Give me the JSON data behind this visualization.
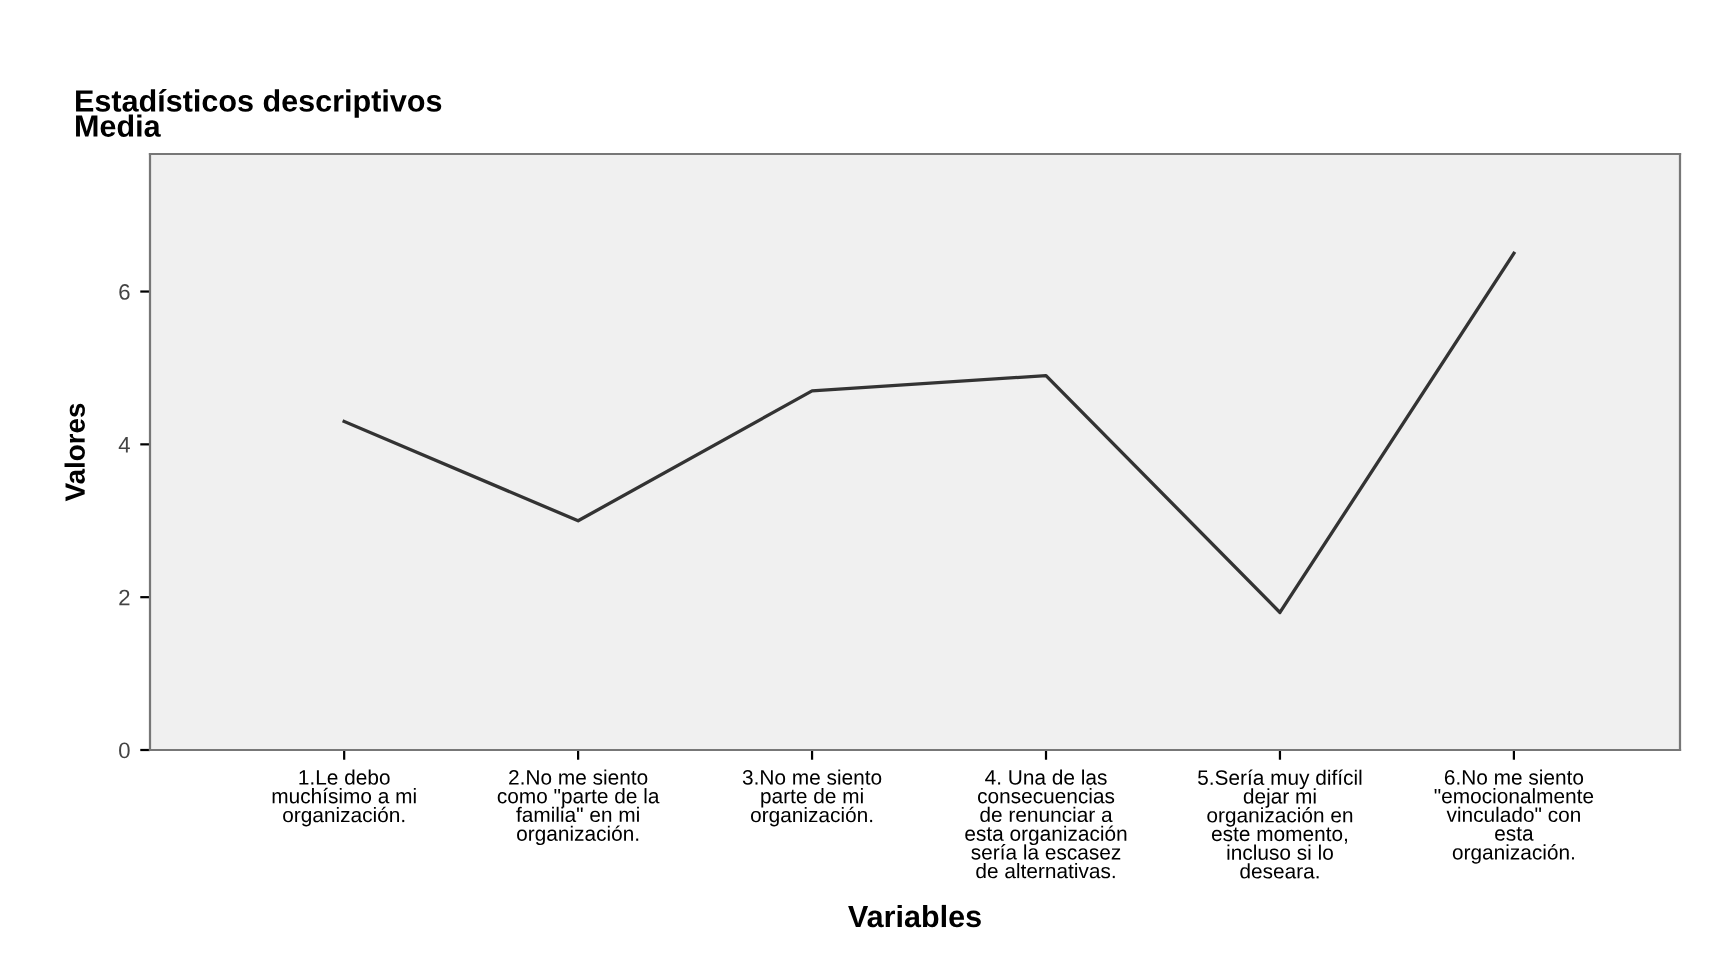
{
  "chart_data": {
    "type": "line",
    "title": "Estadísticos descriptivos\nMedia",
    "xlabel": "Variables",
    "ylabel": "Valores",
    "categories": [
      "1.Le debo\nmuchísimo a mi\norganización.",
      "2.No me siento\ncomo \"parte de la\nfamilia\" en mi\norganización.",
      "3.No me siento\nparte de mi\norganización.",
      "4. Una de las\nconsecuencias\nde renunciar a\nesta organización\nsería la escasez\nde alternativas.",
      "5.Sería muy difícil\ndejar mi\norganización en\neste momento,\nincluso si lo\ndeseara.",
      "6.No me siento\n\"emocionalmente\nvinculado\" con\nesta\norganización."
    ],
    "series": [
      {
        "color": "#333333",
        "values": [
          4.3,
          3.0,
          4.7,
          4.9,
          1.8,
          6.5
        ]
      }
    ],
    "ylim": [
      0,
      7.8
    ],
    "yticks": [
      0,
      2,
      4,
      6
    ],
    "grid": false,
    "legend": false,
    "marker": "none",
    "line_style": "solid"
  }
}
